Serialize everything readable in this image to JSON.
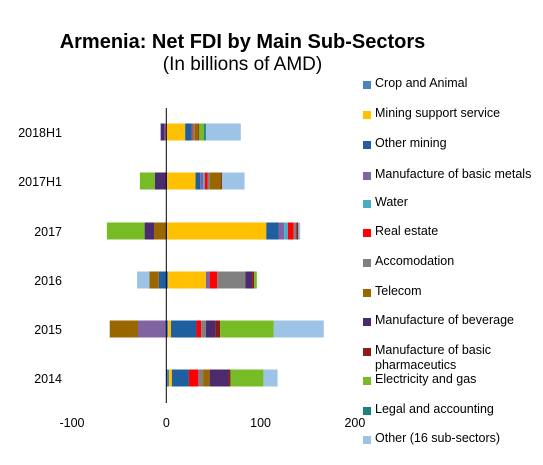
{
  "chart_data": {
    "type": "bar",
    "orientation": "horizontal",
    "stacked": true,
    "title": "Armenia: Net FDI by Main Sub-Sectors",
    "subtitle": "(In billions of AMD)",
    "categories": [
      "2014",
      "2015",
      "2016",
      "2017",
      "2017H1",
      "2018H1"
    ],
    "xlim": [
      -100,
      200
    ],
    "xticks": [
      -100,
      0,
      100,
      200
    ],
    "grid": false,
    "legend_position": "right",
    "series": [
      {
        "name": "Crop and Animal",
        "color": "#4f81bd",
        "values": [
          3,
          2,
          2,
          1,
          1,
          0
        ]
      },
      {
        "name": "Mining support service",
        "color": "#ffc000",
        "values": [
          3,
          3,
          40,
          105,
          30,
          20
        ]
      },
      {
        "name": "Other mining",
        "color": "#1f5fa0",
        "values": [
          18,
          27,
          -8,
          13,
          5,
          7
        ]
      },
      {
        "name": "Manufacture of basic metals",
        "color": "#8064a2",
        "values": [
          0,
          -30,
          4,
          6,
          3,
          -2
        ]
      },
      {
        "name": "Water",
        "color": "#4bacc6",
        "values": [
          0,
          0,
          0,
          4,
          2,
          0
        ]
      },
      {
        "name": "Real estate",
        "color": "#ff0000",
        "values": [
          10,
          5,
          8,
          6,
          3,
          1
        ]
      },
      {
        "name": "Accomodation",
        "color": "#808080",
        "values": [
          5,
          5,
          30,
          3,
          2,
          2
        ]
      },
      {
        "name": "Telecom",
        "color": "#996600",
        "values": [
          7,
          -30,
          -10,
          -13,
          12,
          4
        ]
      },
      {
        "name": "Manufacture of beverage",
        "color": "#4b2a6e",
        "values": [
          20,
          10,
          7,
          -10,
          -12,
          -4
        ]
      },
      {
        "name": "Manufacture of basic pharmaceutics",
        "color": "#8b1a1a",
        "values": [
          2,
          5,
          2,
          2,
          1,
          1
        ]
      },
      {
        "name": "Electricity and gas",
        "color": "#77bc26",
        "values": [
          35,
          57,
          3,
          -40,
          -16,
          5
        ]
      },
      {
        "name": "Legal and accounting",
        "color": "#1f8080",
        "values": [
          0,
          0,
          0,
          0,
          0,
          2
        ]
      },
      {
        "name": "Other (16 sub-sectors)",
        "color": "#9dc3e6",
        "values": [
          15,
          53,
          -13,
          2,
          24,
          37
        ]
      }
    ]
  }
}
